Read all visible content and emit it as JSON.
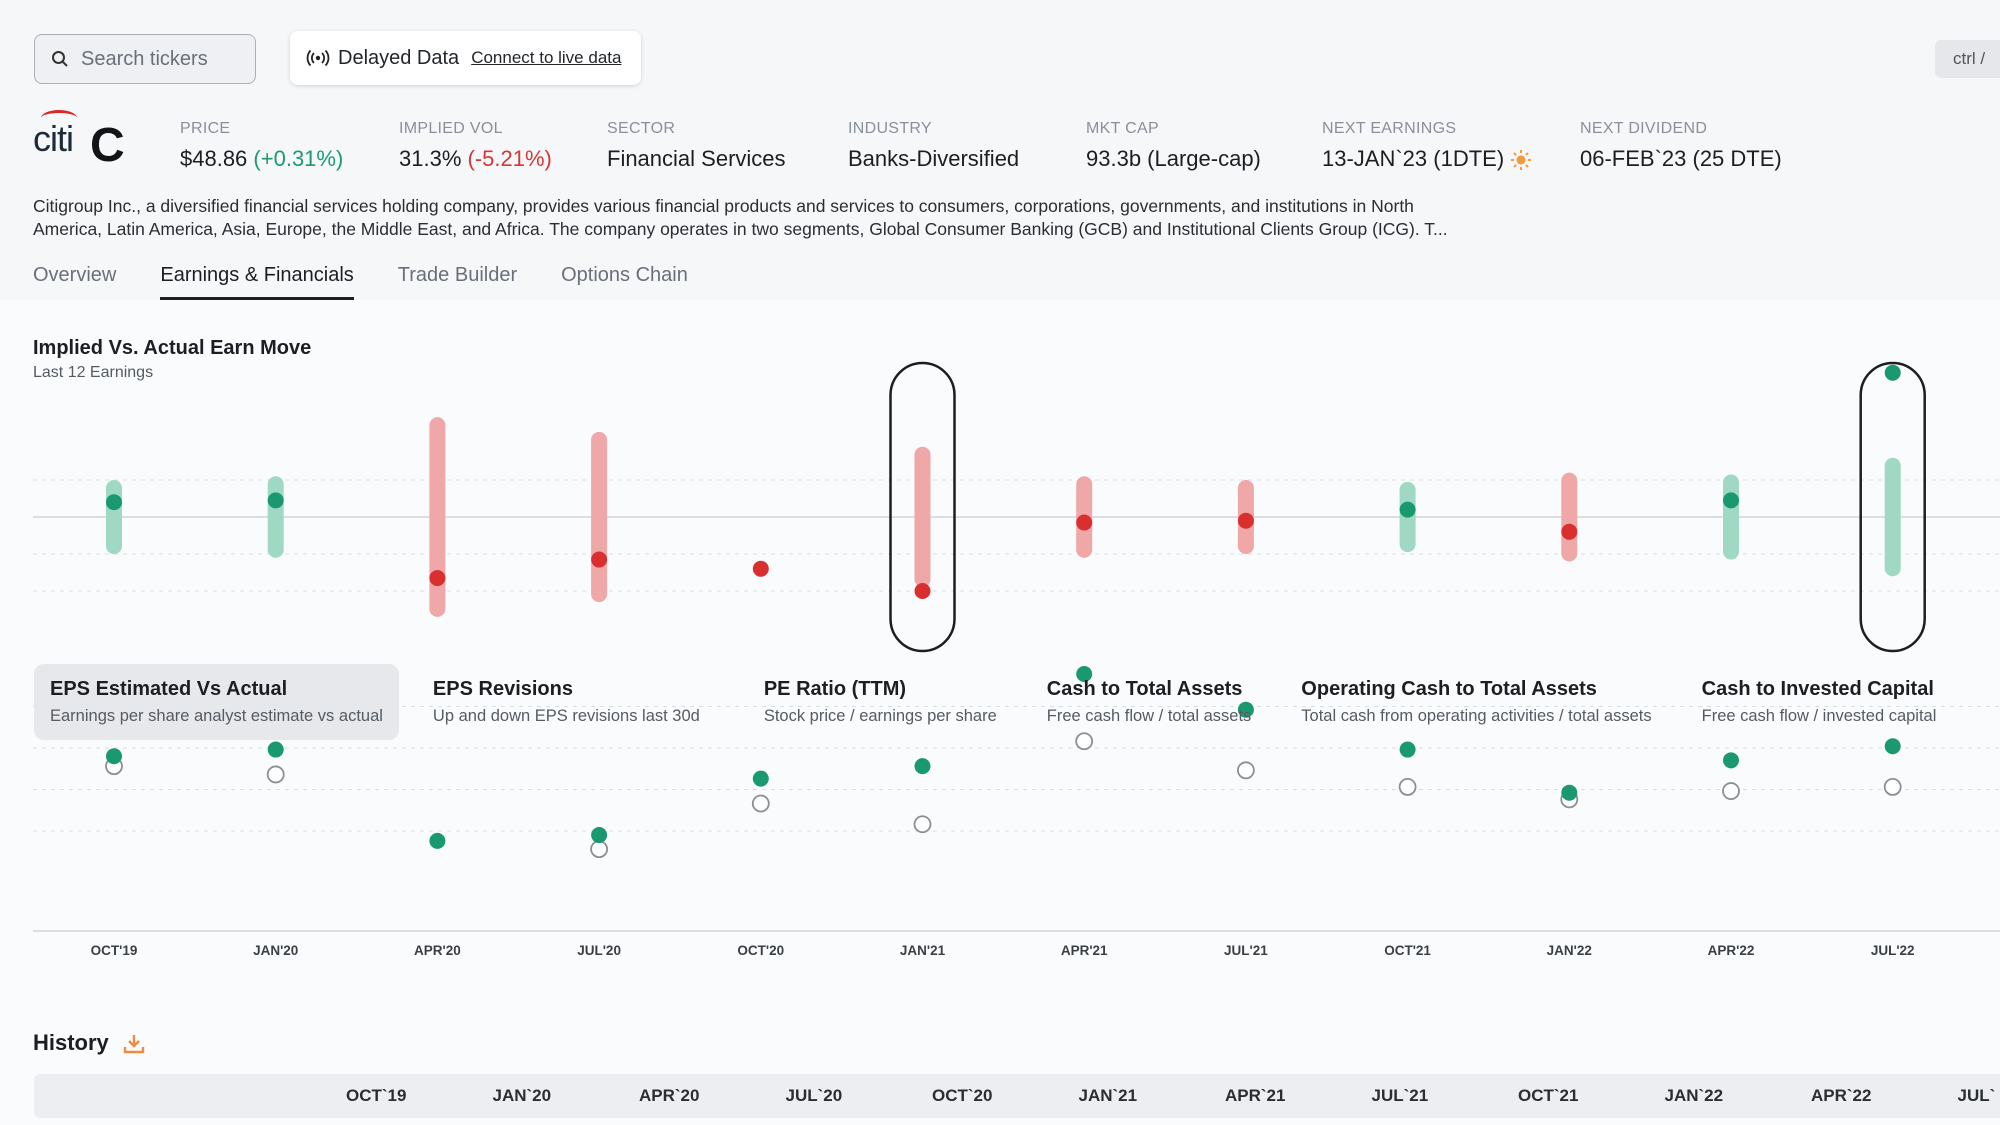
{
  "search": {
    "placeholder": "Search tickers"
  },
  "data_banner": {
    "label": "Delayed Data",
    "link": "Connect to live data"
  },
  "shortcut": "ctrl / ",
  "company": {
    "logo_text": "citi",
    "ticker": "C"
  },
  "stats": [
    {
      "label": "PRICE",
      "value": "$48.86",
      "change": "(+0.31%)",
      "change_dir": "pos"
    },
    {
      "label": "IMPLIED VOL",
      "value": "31.3%",
      "change": "(-5.21%)",
      "change_dir": "neg"
    },
    {
      "label": "SECTOR",
      "value": "Financial Services"
    },
    {
      "label": "INDUSTRY",
      "value": "Banks-Diversified"
    },
    {
      "label": "MKT CAP",
      "value": "93.3b (Large-cap)"
    },
    {
      "label": "NEXT EARNINGS",
      "value": "13-JAN`23 (1DTE)",
      "icon": "sun-icon"
    },
    {
      "label": "NEXT DIVIDEND",
      "value": "06-FEB`23 (25 DTE)"
    }
  ],
  "description": "Citigroup Inc., a diversified financial services holding company, provides various financial products and services to consumers, corporations, governments, and institutions in North America, Latin America, Asia, Europe, the Middle East, and Africa. The company operates in two segments, Global Consumer Banking (GCB) and Institutional Clients Group (ICG). T...",
  "tabs": [
    "Overview",
    "Earnings & Financials",
    "Trade Builder",
    "Options Chain"
  ],
  "active_tab": "Earnings & Financials",
  "earn_move": {
    "title": "Implied Vs. Actual Earn Move",
    "subtitle": "Last 12 Earnings"
  },
  "metric_tabs": [
    {
      "title": "EPS Estimated Vs Actual",
      "subtitle": "Earnings per share analyst estimate vs actual",
      "active": true
    },
    {
      "title": "EPS Revisions",
      "subtitle": "Up and down EPS revisions last 30d"
    },
    {
      "title": "PE Ratio (TTM)",
      "subtitle": "Stock price / earnings per share"
    },
    {
      "title": "Cash to Total Assets",
      "subtitle": "Free cash flow / total assets"
    },
    {
      "title": "Operating Cash to Total Assets",
      "subtitle": "Total cash from operating activities / total assets"
    },
    {
      "title": "Cash to Invested Capital",
      "subtitle": "Free cash flow / invested capital"
    }
  ],
  "history": {
    "title": "History"
  },
  "colors": {
    "up": "#1a9970",
    "up_bar": "#9fd9c3",
    "down": "#d9302f",
    "down_bar": "#f0a7a7"
  },
  "chart_data": [
    {
      "type": "scatter",
      "name": "Implied Vs. Actual Earn Move",
      "categories": [
        "OCT'19",
        "JAN'20",
        "APR'20",
        "JUL'20",
        "OCT'20",
        "JAN'21",
        "APR'21",
        "JUL'21",
        "OCT'21",
        "JAN'22",
        "APR'22",
        "JUL'22"
      ],
      "implied_move": [
        1.0,
        1.1,
        2.7,
        2.3,
        0,
        1.9,
        1.1,
        1.0,
        0.95,
        1.2,
        1.15,
        1.6
      ],
      "actual_move": [
        0.4,
        0.45,
        -1.65,
        -1.15,
        -1.4,
        -2.0,
        -0.15,
        -0.1,
        0.2,
        -0.4,
        0.45,
        3.9
      ],
      "direction": [
        "up",
        "up",
        "down",
        "down",
        "down",
        "down",
        "down",
        "down",
        "up",
        "down",
        "up",
        "up"
      ],
      "highlighted": [
        "JAN'21",
        "JUL'22"
      ]
    },
    {
      "type": "scatter",
      "name": "EPS Estimated Vs Actual",
      "categories": [
        "OCT'19",
        "JAN'20",
        "APR'20",
        "JUL'20",
        "OCT'20",
        "JAN'21",
        "APR'21",
        "JUL'21",
        "OCT'21",
        "JAN'22",
        "APR'22",
        "JUL'22"
      ],
      "estimated": [
        1.95,
        1.85,
        null,
        0.95,
        1.5,
        1.25,
        2.25,
        1.9,
        1.7,
        1.55,
        1.65,
        1.7
      ],
      "actual": [
        2.07,
        2.15,
        1.05,
        1.12,
        1.8,
        1.95,
        3.06,
        2.63,
        2.15,
        1.63,
        2.02,
        2.19
      ],
      "series": [
        {
          "name": "Estimated",
          "style": "hollow"
        },
        {
          "name": "Actual",
          "style": "filled"
        }
      ]
    }
  ],
  "history_columns": [
    "OCT`19",
    "JAN`20",
    "APR`20",
    "JUL`20",
    "OCT`20",
    "JAN`21",
    "APR`21",
    "JUL`21",
    "OCT`21",
    "JAN`22",
    "APR`22",
    "JUL`"
  ]
}
